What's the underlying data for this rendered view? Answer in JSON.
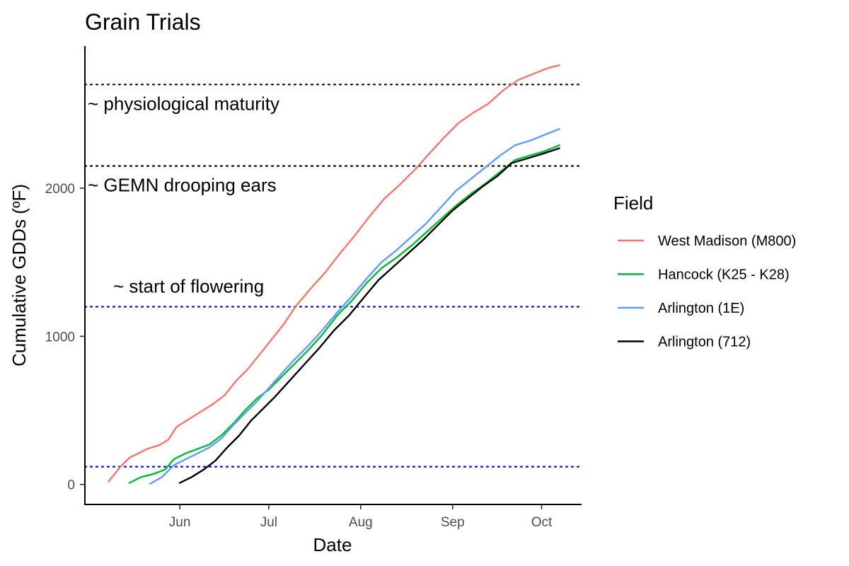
{
  "chart_data": {
    "type": "line",
    "title": "Grain Trials",
    "xlabel": "Date",
    "ylabel": "Cumulative GDDs (ºF)",
    "x_ticks": [
      "2021-06-01",
      "2021-07-01",
      "2021-08-01",
      "2021-09-01",
      "2021-10-01"
    ],
    "x_tick_labels": [
      "Jun",
      "Jul",
      "Aug",
      "Sep",
      "Oct"
    ],
    "y_ticks": [
      0,
      1000,
      2000
    ],
    "xlim": [
      "2021-04-30",
      "2021-10-14"
    ],
    "ylim": [
      -135,
      2960
    ],
    "grid": false,
    "legend": {
      "title": "Field",
      "position": "right"
    },
    "reference_lines": [
      {
        "y": 2700,
        "color": "#000000",
        "style": "dotted",
        "label": "~ physiological maturity"
      },
      {
        "y": 2150,
        "color": "#000000",
        "style": "dotted",
        "label": "~ GEMN drooping ears"
      },
      {
        "y": 1200,
        "color": "#0000ff",
        "style": "dotted",
        "label": "~ start of flowering"
      },
      {
        "y": 120,
        "color": "#0000ff",
        "style": "dotted",
        "label": ""
      }
    ],
    "series": [
      {
        "name": "West Madison (M800)",
        "color": "#F8766D",
        "points": [
          [
            "2021-05-08",
            20
          ],
          [
            "2021-05-12",
            120
          ],
          [
            "2021-05-15",
            180
          ],
          [
            "2021-05-18",
            210
          ],
          [
            "2021-05-21",
            240
          ],
          [
            "2021-05-25",
            265
          ],
          [
            "2021-05-28",
            300
          ],
          [
            "2021-05-31",
            390
          ],
          [
            "2021-06-04",
            440
          ],
          [
            "2021-06-08",
            490
          ],
          [
            "2021-06-12",
            540
          ],
          [
            "2021-06-16",
            600
          ],
          [
            "2021-06-20",
            700
          ],
          [
            "2021-06-24",
            780
          ],
          [
            "2021-06-28",
            880
          ],
          [
            "2021-07-02",
            980
          ],
          [
            "2021-07-06",
            1080
          ],
          [
            "2021-07-10",
            1200
          ],
          [
            "2021-07-15",
            1320
          ],
          [
            "2021-07-20",
            1430
          ],
          [
            "2021-07-25",
            1560
          ],
          [
            "2021-07-30",
            1680
          ],
          [
            "2021-08-04",
            1810
          ],
          [
            "2021-08-09",
            1930
          ],
          [
            "2021-08-14",
            2020
          ],
          [
            "2021-08-19",
            2120
          ],
          [
            "2021-08-24",
            2230
          ],
          [
            "2021-08-29",
            2340
          ],
          [
            "2021-09-03",
            2440
          ],
          [
            "2021-09-08",
            2510
          ],
          [
            "2021-09-13",
            2570
          ],
          [
            "2021-09-18",
            2660
          ],
          [
            "2021-09-23",
            2730
          ],
          [
            "2021-09-28",
            2770
          ],
          [
            "2021-10-03",
            2810
          ],
          [
            "2021-10-07",
            2830
          ]
        ]
      },
      {
        "name": "Hancock (K25 - K28)",
        "color": "#00BA38",
        "points": [
          [
            "2021-05-15",
            10
          ],
          [
            "2021-05-19",
            50
          ],
          [
            "2021-05-23",
            70
          ],
          [
            "2021-05-27",
            100
          ],
          [
            "2021-05-30",
            170
          ],
          [
            "2021-06-03",
            210
          ],
          [
            "2021-06-07",
            240
          ],
          [
            "2021-06-11",
            270
          ],
          [
            "2021-06-15",
            330
          ],
          [
            "2021-06-19",
            410
          ],
          [
            "2021-06-23",
            500
          ],
          [
            "2021-06-27",
            580
          ],
          [
            "2021-07-01",
            640
          ],
          [
            "2021-07-05",
            720
          ],
          [
            "2021-07-09",
            800
          ],
          [
            "2021-07-14",
            900
          ],
          [
            "2021-07-19",
            1010
          ],
          [
            "2021-07-24",
            1140
          ],
          [
            "2021-07-29",
            1240
          ],
          [
            "2021-08-03",
            1360
          ],
          [
            "2021-08-08",
            1460
          ],
          [
            "2021-08-13",
            1530
          ],
          [
            "2021-08-18",
            1610
          ],
          [
            "2021-08-23",
            1700
          ],
          [
            "2021-08-28",
            1790
          ],
          [
            "2021-09-02",
            1880
          ],
          [
            "2021-09-07",
            1960
          ],
          [
            "2021-09-12",
            2030
          ],
          [
            "2021-09-17",
            2110
          ],
          [
            "2021-09-22",
            2190
          ],
          [
            "2021-09-27",
            2220
          ],
          [
            "2021-10-02",
            2250
          ],
          [
            "2021-10-07",
            2290
          ]
        ]
      },
      {
        "name": "Arlington (1E)",
        "color": "#619CFF",
        "points": [
          [
            "2021-05-22",
            5
          ],
          [
            "2021-05-26",
            50
          ],
          [
            "2021-05-30",
            130
          ],
          [
            "2021-06-03",
            170
          ],
          [
            "2021-06-07",
            210
          ],
          [
            "2021-06-11",
            250
          ],
          [
            "2021-06-15",
            310
          ],
          [
            "2021-06-19",
            400
          ],
          [
            "2021-06-23",
            480
          ],
          [
            "2021-06-27",
            560
          ],
          [
            "2021-07-01",
            650
          ],
          [
            "2021-07-05",
            740
          ],
          [
            "2021-07-09",
            830
          ],
          [
            "2021-07-14",
            930
          ],
          [
            "2021-07-19",
            1040
          ],
          [
            "2021-07-24",
            1160
          ],
          [
            "2021-07-29",
            1270
          ],
          [
            "2021-08-03",
            1390
          ],
          [
            "2021-08-08",
            1500
          ],
          [
            "2021-08-13",
            1580
          ],
          [
            "2021-08-18",
            1670
          ],
          [
            "2021-08-23",
            1760
          ],
          [
            "2021-08-28",
            1870
          ],
          [
            "2021-09-02",
            1980
          ],
          [
            "2021-09-07",
            2060
          ],
          [
            "2021-09-12",
            2140
          ],
          [
            "2021-09-17",
            2220
          ],
          [
            "2021-09-22",
            2290
          ],
          [
            "2021-09-27",
            2320
          ],
          [
            "2021-10-02",
            2360
          ],
          [
            "2021-10-07",
            2400
          ]
        ]
      },
      {
        "name": "Arlington (712)",
        "color": "#000000",
        "points": [
          [
            "2021-06-01",
            10
          ],
          [
            "2021-06-05",
            50
          ],
          [
            "2021-06-09",
            100
          ],
          [
            "2021-06-13",
            160
          ],
          [
            "2021-06-17",
            250
          ],
          [
            "2021-06-21",
            330
          ],
          [
            "2021-06-25",
            430
          ],
          [
            "2021-06-29",
            510
          ],
          [
            "2021-07-03",
            590
          ],
          [
            "2021-07-08",
            700
          ],
          [
            "2021-07-13",
            810
          ],
          [
            "2021-07-18",
            920
          ],
          [
            "2021-07-23",
            1040
          ],
          [
            "2021-07-28",
            1140
          ],
          [
            "2021-08-02",
            1260
          ],
          [
            "2021-08-07",
            1380
          ],
          [
            "2021-08-12",
            1470
          ],
          [
            "2021-08-17",
            1560
          ],
          [
            "2021-08-22",
            1650
          ],
          [
            "2021-08-27",
            1750
          ],
          [
            "2021-09-01",
            1850
          ],
          [
            "2021-09-06",
            1930
          ],
          [
            "2021-09-11",
            2010
          ],
          [
            "2021-09-16",
            2080
          ],
          [
            "2021-09-21",
            2170
          ],
          [
            "2021-09-26",
            2200
          ],
          [
            "2021-10-01",
            2230
          ],
          [
            "2021-10-07",
            2270
          ]
        ]
      }
    ]
  }
}
